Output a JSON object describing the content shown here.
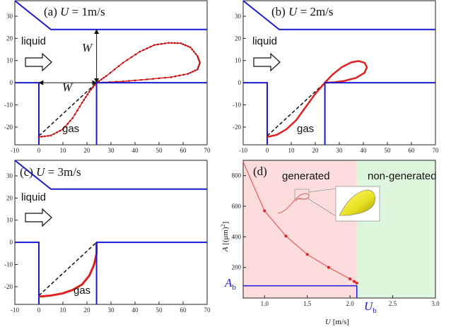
{
  "chart_data": [
    {
      "id": "a",
      "type": "line",
      "title_prefix": "(a) ",
      "title_var": "U",
      "title_suffix": " = 1m/s",
      "labels": {
        "liquid": "liquid",
        "gas": "gas",
        "w_horizontal": "W",
        "w_vertical": "W"
      },
      "xlim": [
        -10,
        70
      ],
      "ylim": [
        -28,
        37
      ],
      "x_ticks": [
        -10,
        0,
        10,
        20,
        30,
        40,
        50,
        60,
        70
      ],
      "y_ticks": [
        -20,
        -10,
        0,
        10,
        20,
        30
      ],
      "wall_x": 24,
      "bubble_curve": [
        [
          0,
          -24.5
        ],
        [
          5,
          -23.8
        ],
        [
          10,
          -21
        ],
        [
          14,
          -16
        ],
        [
          18,
          -9
        ],
        [
          21,
          -4
        ],
        [
          24,
          0
        ],
        [
          28,
          3
        ],
        [
          35,
          9
        ],
        [
          42,
          14
        ],
        [
          48,
          17
        ],
        [
          54,
          18
        ],
        [
          59,
          17.8
        ],
        [
          63,
          16
        ],
        [
          66,
          12
        ],
        [
          67,
          9
        ],
        [
          66,
          6
        ],
        [
          62,
          4
        ],
        [
          55,
          2.5
        ],
        [
          45,
          1.5
        ],
        [
          35,
          0.6
        ],
        [
          24,
          0
        ]
      ],
      "dashed_line": [
        [
          0,
          -24
        ],
        [
          24,
          0
        ]
      ],
      "colors": {
        "curve": "#e02020",
        "marker": "#b01010",
        "walls": "#1a1ad6"
      }
    },
    {
      "id": "b",
      "type": "line",
      "title_prefix": "(b) ",
      "title_var": "U",
      "title_suffix": " = 2m/s",
      "labels": {
        "liquid": "liquid",
        "gas": "gas"
      },
      "xlim": [
        -10,
        70
      ],
      "ylim": [
        -28,
        37
      ],
      "x_ticks": [
        -10,
        0,
        10,
        20,
        30,
        40,
        50,
        60,
        70
      ],
      "y_ticks": [
        -20,
        -10,
        0,
        10,
        20,
        30
      ],
      "wall_x": 24,
      "bubble_curve": [
        [
          0,
          -24.5
        ],
        [
          4,
          -23.5
        ],
        [
          8,
          -21
        ],
        [
          12,
          -17
        ],
        [
          16,
          -11
        ],
        [
          20,
          -5
        ],
        [
          24,
          0
        ],
        [
          27,
          3.5
        ],
        [
          31,
          7
        ],
        [
          35,
          9.2
        ],
        [
          38,
          9.8
        ],
        [
          40.5,
          9
        ],
        [
          41.5,
          7
        ],
        [
          40.5,
          4.5
        ],
        [
          37,
          2.2
        ],
        [
          32,
          0.8
        ],
        [
          28,
          0.2
        ],
        [
          24,
          0
        ]
      ],
      "dashed_line": [
        [
          0,
          -24
        ],
        [
          24,
          0
        ]
      ],
      "colors": {
        "curve": "#e02020",
        "walls": "#1a1ad6"
      }
    },
    {
      "id": "c",
      "type": "line",
      "title_prefix": "(c) ",
      "title_var": "U",
      "title_suffix": " = 3m/s",
      "labels": {
        "liquid": "liquid",
        "gas": "gas"
      },
      "xlim": [
        -10,
        70
      ],
      "ylim": [
        -28,
        37
      ],
      "x_ticks": [
        -10,
        0,
        10,
        20,
        30,
        40,
        50,
        60,
        70
      ],
      "y_ticks": [
        -20,
        -10,
        0,
        10,
        20,
        30
      ],
      "wall_x": 24,
      "bubble_curve": [
        [
          0,
          -24.5
        ],
        [
          5,
          -24
        ],
        [
          10,
          -23
        ],
        [
          14,
          -21.5
        ],
        [
          18,
          -19
        ],
        [
          21,
          -15
        ],
        [
          23,
          -10
        ],
        [
          24,
          -5
        ],
        [
          24,
          0
        ]
      ],
      "dashed_line": [
        [
          0,
          -24
        ],
        [
          24,
          0
        ]
      ],
      "colors": {
        "curve": "#e02020",
        "walls": "#1a1ad6"
      }
    },
    {
      "id": "d",
      "type": "line",
      "title": "(d)",
      "xlabel": "U [m/s]",
      "ylabel": "A [(μm)²]",
      "xlim": [
        0.75,
        3.0
      ],
      "ylim": [
        0,
        900
      ],
      "x_ticks": [
        1.0,
        1.5,
        2.0,
        2.5,
        3.0
      ],
      "x_tick_labels": [
        "1.0",
        "1.5",
        "2.0",
        "2.5",
        "3.0"
      ],
      "y_ticks": [
        200,
        400,
        600,
        800
      ],
      "regions": [
        {
          "label": "generated",
          "x_range": [
            0.75,
            2.08
          ],
          "color": "#fcdcdc"
        },
        {
          "label": "non-generated",
          "x_range": [
            2.08,
            3.0
          ],
          "color": "#def6de"
        }
      ],
      "series": [
        {
          "x": [
            0.75,
            1.0,
            1.25,
            1.5,
            1.75,
            2.0,
            2.05,
            2.08
          ],
          "values": [
            890,
            570,
            405,
            285,
            200,
            125,
            108,
            98
          ]
        }
      ],
      "threshold": {
        "ab_label": "A",
        "ab_sub": "b",
        "ub_label": "U",
        "ub_sub": "b",
        "A_b": 80,
        "U_b": 2.08
      },
      "colors": {
        "line": "#e85a5a",
        "marker": "#e02020",
        "threshold": "#1a1ad6",
        "inset": "#e8e020"
      }
    }
  ]
}
